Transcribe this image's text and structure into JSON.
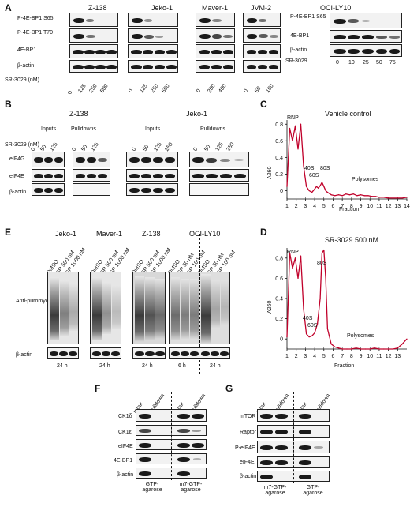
{
  "panels": {
    "A": {
      "label": "A",
      "cells": [
        "Z-138",
        "Jeko-1",
        "Maver-1",
        "JVM-2",
        "OCI-LY10"
      ],
      "rows": [
        "P-4E-BP1 S65",
        "P-4E-BP1 T70",
        "4E-BP1",
        "β-actin"
      ],
      "treatment": "SR-3029 (nM)",
      "doses_z138": [
        "0",
        "125",
        "250",
        "500"
      ],
      "doses_jeko": [
        "0",
        "125",
        "250",
        "500"
      ],
      "doses_maver": [
        "0",
        "200",
        "400"
      ],
      "doses_jvm": [
        "0",
        "50",
        "100"
      ],
      "ocily10_rows": [
        "P-4E-BP1 S65",
        "4E-BP1",
        "β-actin"
      ],
      "ocily10_treatment": "SR-3029",
      "doses_ocily10": [
        "0",
        "10",
        "25",
        "50",
        "75"
      ]
    },
    "B": {
      "label": "B",
      "cells": [
        "Z-138",
        "Jeko-1"
      ],
      "groups": [
        "Inputs",
        "Pulldowns"
      ],
      "treatment": "SR-3029 (nM)",
      "doses_z138": [
        "0",
        "50",
        "125"
      ],
      "doses_jeko": [
        "0",
        "50",
        "125",
        "250"
      ],
      "rows": [
        "eIF4G",
        "eIF4E",
        "β-actin"
      ]
    },
    "C": {
      "label": "C",
      "title": "Vehicle control",
      "ylabel": "A260",
      "xlabel": "Fraction",
      "annotations": [
        "RNP",
        "40S",
        "60S",
        "80S",
        "Polysomes"
      ]
    },
    "D": {
      "label": "D",
      "title": "SR-3029 500 nM",
      "ylabel": "A260",
      "xlabel": "Fraction",
      "annotations": [
        "RNP",
        "80S",
        "40S",
        "60S",
        "Polysomes"
      ]
    },
    "E": {
      "label": "E",
      "cells": [
        "Jeko-1",
        "Maver-1",
        "Z-138",
        "OCI-LY10"
      ],
      "lanes3": [
        "DMSO",
        "SR 500 nM",
        "SR 1000 nM"
      ],
      "lanes_oci": [
        "DMSO",
        "SR 50 nM",
        "SR 100 nM",
        "DMSO",
        "SR 50 nM",
        "SR 100 nM"
      ],
      "row_label": "Anti-puromycin",
      "actin": "β-actin",
      "times": [
        "24 h",
        "24 h",
        "24 h",
        "6 h",
        "24 h"
      ]
    },
    "F": {
      "label": "F",
      "lanes": [
        "Input",
        "Pulldown",
        "Input",
        "Pulldown"
      ],
      "rows": [
        "CK1δ",
        "CK1ε",
        "eIF4E",
        "4E-BP1",
        "β-actin"
      ],
      "bottom": [
        "GTP-agarose",
        "m7-GTP-agarose"
      ]
    },
    "G": {
      "label": "G",
      "lanes": [
        "Input",
        "Pulldown",
        "Input",
        "Pulldown"
      ],
      "rows": [
        "mTOR",
        "Raptor",
        "P-eIF4E",
        "eIF4E",
        "β-actin"
      ],
      "bottom": [
        "m7-GTP-agarose",
        "GTP-agarose"
      ]
    }
  },
  "chart_data": [
    {
      "type": "line",
      "title": "Vehicle control",
      "xlabel": "Fraction",
      "ylabel": "A260",
      "xticks": [
        "1",
        "2",
        "3",
        "4",
        "5",
        "6",
        "7",
        "8",
        "9",
        "10",
        "11",
        "12",
        "13",
        "14"
      ],
      "yticks": [
        "0",
        "0.2",
        "0.4",
        "0.6",
        "0.8"
      ],
      "xlim": [
        1,
        14
      ],
      "ylim": [
        -0.1,
        0.85
      ],
      "color": "#c0002a",
      "x": [
        1.0,
        1.3,
        1.6,
        1.9,
        2.2,
        2.5,
        2.8,
        3.1,
        3.4,
        3.7,
        4.0,
        4.2,
        4.4,
        4.6,
        4.8,
        5.0,
        5.2,
        5.4,
        5.8,
        6.2,
        6.6,
        7.0,
        7.4,
        7.8,
        8.2,
        8.6,
        9.0,
        9.4,
        9.8,
        10.2,
        10.6,
        11.0,
        11.5,
        12.0,
        12.5,
        13.0,
        13.5,
        14.0
      ],
      "y": [
        0.05,
        0.75,
        0.6,
        0.78,
        0.5,
        0.8,
        0.3,
        0.05,
        0.0,
        -0.02,
        0.02,
        0.05,
        0.03,
        0.06,
        0.1,
        0.05,
        0.0,
        -0.02,
        -0.05,
        -0.06,
        -0.05,
        -0.06,
        -0.04,
        -0.05,
        -0.04,
        -0.06,
        -0.05,
        -0.06,
        -0.06,
        -0.07,
        -0.07,
        -0.08,
        -0.08,
        -0.09,
        -0.09,
        -0.09,
        -0.09,
        -0.08
      ]
    },
    {
      "type": "line",
      "title": "SR-3029 500 nM",
      "xlabel": "Fraction",
      "ylabel": "A260",
      "xticks": [
        "1",
        "2",
        "3",
        "4",
        "5",
        "6",
        "7",
        "8",
        "9",
        "10",
        "11",
        "12",
        "13"
      ],
      "yticks": [
        "0",
        "0.2",
        "0.4",
        "0.6",
        "0.8"
      ],
      "xlim": [
        1,
        14
      ],
      "ylim": [
        -0.1,
        0.9
      ],
      "color": "#c0002a",
      "x": [
        1.0,
        1.3,
        1.6,
        1.9,
        2.2,
        2.5,
        2.8,
        3.1,
        3.4,
        3.7,
        4.0,
        4.3,
        4.6,
        4.8,
        5.0,
        5.2,
        5.4,
        5.8,
        6.2,
        6.6,
        7.0,
        7.5,
        8.0,
        8.5,
        9.0,
        9.5,
        10.0,
        10.5,
        11.0,
        11.5,
        12.0,
        12.5,
        13.0,
        13.5,
        14.0
      ],
      "y": [
        0.02,
        0.85,
        0.7,
        0.8,
        0.6,
        0.82,
        0.3,
        0.05,
        0.02,
        0.03,
        0.06,
        0.15,
        0.4,
        0.85,
        0.88,
        0.6,
        0.1,
        -0.05,
        -0.08,
        -0.09,
        -0.1,
        -0.1,
        -0.1,
        -0.09,
        -0.1,
        -0.1,
        -0.1,
        -0.09,
        -0.1,
        -0.1,
        -0.1,
        -0.1,
        -0.09,
        -0.05,
        0.0
      ]
    }
  ]
}
